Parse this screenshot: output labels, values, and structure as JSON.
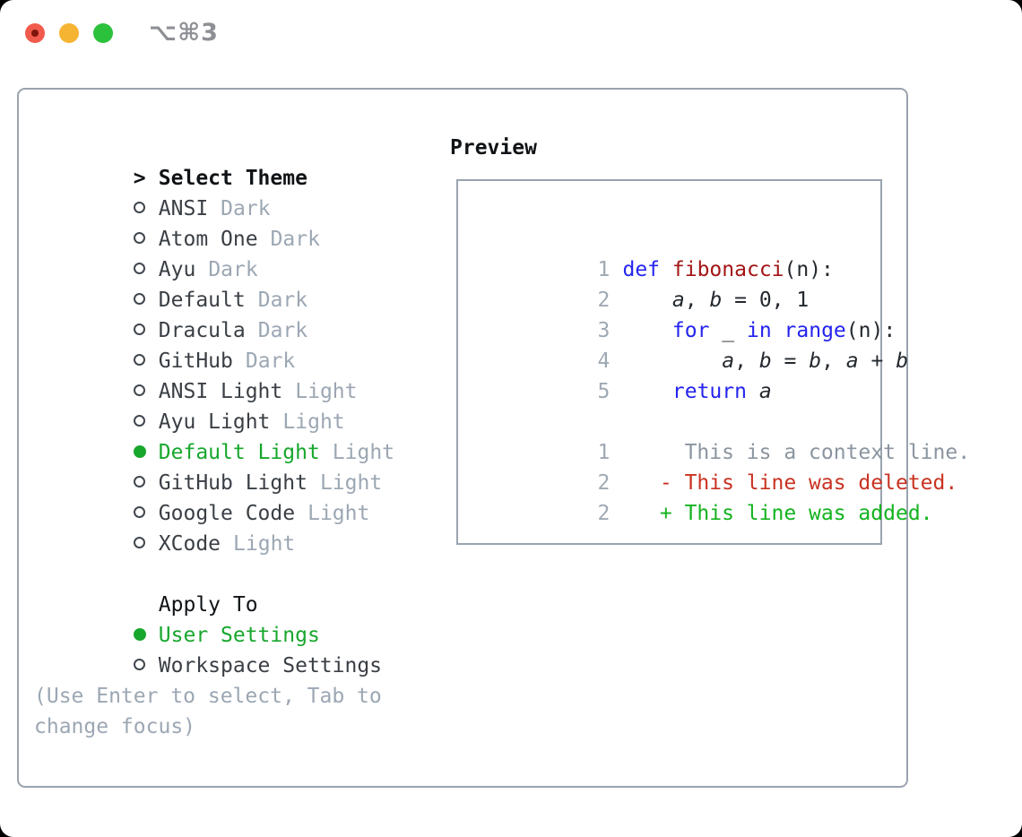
{
  "window": {
    "title": "⌥⌘3"
  },
  "colors": {
    "border": "#9aa3ae",
    "heading": "#101316",
    "text": "#3a3f45",
    "muted": "#9ca7b3",
    "green": "#17a72d",
    "keyword": "#2424ee",
    "func": "#a31515",
    "code": "#24292f",
    "linenum": "#9fa9b4",
    "context": "#8b95a0",
    "deleted": "#c93222",
    "added": "#13b31e",
    "title": "#8e9095",
    "tl_red": "#f15b4d",
    "tl_red_dot": "#7e150b",
    "tl_yellow": "#f6b433",
    "tl_green": "#2cc13c"
  },
  "theme_panel": {
    "cursor": ">",
    "header": "Select Theme",
    "items": [
      {
        "name": "ANSI",
        "variant": "Dark",
        "selected": false
      },
      {
        "name": "Atom One",
        "variant": "Dark",
        "selected": false
      },
      {
        "name": "Ayu",
        "variant": "Dark",
        "selected": false
      },
      {
        "name": "Default",
        "variant": "Dark",
        "selected": false
      },
      {
        "name": "Dracula",
        "variant": "Dark",
        "selected": false
      },
      {
        "name": "GitHub",
        "variant": "Dark",
        "selected": false
      },
      {
        "name": "ANSI Light",
        "variant": "Light",
        "selected": false
      },
      {
        "name": "Ayu Light",
        "variant": "Light",
        "selected": false
      },
      {
        "name": "Default Light",
        "variant": "Light",
        "selected": true
      },
      {
        "name": "GitHub Light",
        "variant": "Light",
        "selected": false
      },
      {
        "name": "Google Code",
        "variant": "Light",
        "selected": false
      },
      {
        "name": "XCode",
        "variant": "Light",
        "selected": false
      }
    ],
    "apply_to": {
      "header": "Apply To",
      "options": [
        {
          "label": "User Settings",
          "selected": true
        },
        {
          "label": "Workspace Settings",
          "selected": false
        }
      ]
    },
    "hint_lines": [
      "(Use Enter to select, Tab to",
      "change focus)"
    ]
  },
  "preview": {
    "header": "Preview",
    "code_lines": [
      {
        "num": "1",
        "segments": [
          {
            "t": "def",
            "c": "kw"
          },
          {
            "t": " "
          },
          {
            "t": "fibonacci",
            "c": "fn"
          },
          {
            "t": "(n):"
          }
        ]
      },
      {
        "num": "2",
        "segments": [
          {
            "t": "    "
          },
          {
            "t": "a",
            "c": "var"
          },
          {
            "t": ", "
          },
          {
            "t": "b",
            "c": "var"
          },
          {
            "t": " = 0, 1"
          }
        ]
      },
      {
        "num": "3",
        "segments": [
          {
            "t": "    "
          },
          {
            "t": "for",
            "c": "kw"
          },
          {
            "t": " _ "
          },
          {
            "t": "in",
            "c": "kw"
          },
          {
            "t": " "
          },
          {
            "t": "range",
            "c": "kw"
          },
          {
            "t": "(n):"
          }
        ]
      },
      {
        "num": "4",
        "segments": [
          {
            "t": "        "
          },
          {
            "t": "a",
            "c": "var"
          },
          {
            "t": ", "
          },
          {
            "t": "b",
            "c": "var"
          },
          {
            "t": " = "
          },
          {
            "t": "b",
            "c": "var"
          },
          {
            "t": ", "
          },
          {
            "t": "a",
            "c": "var"
          },
          {
            "t": " + "
          },
          {
            "t": "b",
            "c": "var"
          }
        ]
      },
      {
        "num": "5",
        "segments": [
          {
            "t": "    "
          },
          {
            "t": "return",
            "c": "kw"
          },
          {
            "t": " "
          },
          {
            "t": "a",
            "c": "var"
          }
        ]
      }
    ],
    "diff_lines": [
      {
        "num": "1",
        "kind": "context",
        "text": "      This is a context line."
      },
      {
        "num": "2",
        "kind": "deleted",
        "text": "    - This line was deleted."
      },
      {
        "num": "2",
        "kind": "added",
        "text": "    + This line was added."
      }
    ]
  }
}
